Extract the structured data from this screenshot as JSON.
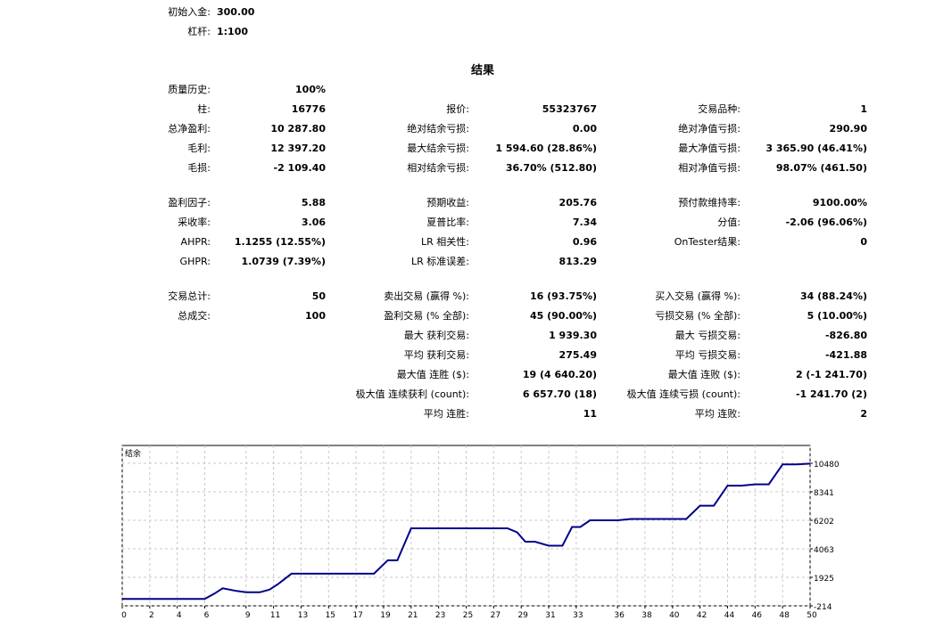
{
  "header": {
    "deposit_label": "初始入金:",
    "deposit_value": "300.00",
    "leverage_label": "杠杆:",
    "leverage_value": "1:100"
  },
  "results_title": "结果",
  "stats": [
    {
      "l": "质量历史:",
      "v": "100%"
    },
    {
      "l": "柱:",
      "v": "16776"
    },
    {
      "l": "总净盈利:",
      "v": "10 287.80"
    },
    {
      "l": "毛利:",
      "v": "12 397.20"
    },
    {
      "l": "毛损:",
      "v": "-2 109.40"
    },
    {
      "l": "报价:",
      "v": "55323767"
    },
    {
      "l": "绝对结余亏损:",
      "v": "0.00"
    },
    {
      "l": "最大结余亏损:",
      "v": "1 594.60 (28.86%)"
    },
    {
      "l": "相对结余亏损:",
      "v": "36.70% (512.80)"
    },
    {
      "l": "交易品种:",
      "v": "1"
    },
    {
      "l": "绝对净值亏损:",
      "v": "290.90"
    },
    {
      "l": "最大净值亏损:",
      "v": "3 365.90 (46.41%)"
    },
    {
      "l": "相对净值亏损:",
      "v": "98.07% (461.50)"
    },
    {
      "l": "盈利因子:",
      "v": "5.88"
    },
    {
      "l": "采收率:",
      "v": "3.06"
    },
    {
      "l": "AHPR:",
      "v": "1.1255 (12.55%)"
    },
    {
      "l": "GHPR:",
      "v": "1.0739 (7.39%)"
    },
    {
      "l": "预期收益:",
      "v": "205.76"
    },
    {
      "l": "夏普比率:",
      "v": "7.34"
    },
    {
      "l": "LR 相关性:",
      "v": "0.96"
    },
    {
      "l": "LR 标准误差:",
      "v": "813.29"
    },
    {
      "l": "预付款维持率:",
      "v": "9100.00%"
    },
    {
      "l": "分值:",
      "v": "-2.06 (96.06%)"
    },
    {
      "l": "OnTester结果:",
      "v": "0"
    },
    {
      "l": "交易总计:",
      "v": "50"
    },
    {
      "l": "总成交:",
      "v": "100"
    },
    {
      "l": "卖出交易 (赢得 %):",
      "v": "16 (93.75%)"
    },
    {
      "l": "盈利交易 (% 全部):",
      "v": "45 (90.00%)"
    },
    {
      "l": "最大 获利交易:",
      "v": "1 939.30"
    },
    {
      "l": "平均 获利交易:",
      "v": "275.49"
    },
    {
      "l": "最大值 连胜 ($):",
      "v": "19 (4 640.20)"
    },
    {
      "l": "极大值 连续获利 (count):",
      "v": "6 657.70 (18)"
    },
    {
      "l": "平均 连胜:",
      "v": "11"
    },
    {
      "l": "买入交易 (赢得 %):",
      "v": "34 (88.24%)"
    },
    {
      "l": "亏损交易 (% 全部):",
      "v": "5 (10.00%)"
    },
    {
      "l": "最大 亏损交易:",
      "v": "-826.80"
    },
    {
      "l": "平均 亏损交易:",
      "v": "-421.88"
    },
    {
      "l": "最大值 连败 ($):",
      "v": "2 (-1 241.70)"
    },
    {
      "l": "极大值 连续亏损 (count):",
      "v": "-1 241.70 (2)"
    },
    {
      "l": "平均 连败:",
      "v": "2"
    }
  ],
  "chart_data": {
    "type": "line",
    "title": "结余",
    "xlabel": "",
    "ylabel": "",
    "xlim": [
      0,
      50
    ],
    "ylim": [
      -214,
      10480
    ],
    "x_ticks": [
      0,
      2,
      4,
      6,
      9,
      11,
      13,
      15,
      17,
      19,
      21,
      23,
      25,
      27,
      29,
      31,
      33,
      36,
      38,
      40,
      42,
      44,
      46,
      48,
      50
    ],
    "x_tick_labels": [
      "0",
      "2",
      "4",
      "6",
      "9",
      "11",
      "13",
      "15",
      "17",
      "19",
      "21",
      "23",
      "25",
      "27",
      "29",
      "31",
      "33",
      "36",
      "38",
      "40",
      "42",
      "44",
      "46",
      "48",
      "50"
    ],
    "y_ticks": [
      -214,
      1925,
      4063,
      6202,
      8341,
      10480
    ],
    "y_tick_labels": [
      "-214",
      "1925",
      "4063",
      "6202",
      "8341",
      "10480"
    ],
    "grid": true,
    "line_color": "#00008b",
    "series": [
      {
        "x": [
          0,
          6.0,
          6.7,
          7.3,
          8.3,
          9.0,
          10.0,
          10.7,
          11.3,
          12.3,
          13.3,
          14.3,
          15.3,
          16.3,
          17.3,
          18.3,
          19.3,
          20.0,
          21.0,
          22.0,
          23.0,
          24.0,
          25.0,
          26.0,
          27.0,
          28.0,
          28.7,
          29.3,
          30.0,
          31.0,
          32.0,
          32.7,
          33.3,
          34.0,
          35.0,
          36.0,
          37.0,
          38.0,
          39.0,
          40.0,
          41.0,
          42.0,
          43.0,
          44.0,
          45.0,
          46.0,
          47.0,
          48.0,
          49.0,
          50.0
        ],
        "y": [
          300,
          300,
          700,
          1100,
          900,
          800,
          800,
          1000,
          1400,
          2200,
          2200,
          2200,
          2200,
          2200,
          2200,
          2200,
          3200,
          3200,
          5600,
          5600,
          5600,
          5600,
          5600,
          5600,
          5600,
          5600,
          5300,
          4600,
          4600,
          4300,
          4300,
          5700,
          5700,
          6200,
          6200,
          6200,
          6300,
          6300,
          6300,
          6300,
          6300,
          7300,
          7300,
          8800,
          8800,
          8900,
          8900,
          10400,
          10400,
          10450
        ]
      }
    ]
  }
}
